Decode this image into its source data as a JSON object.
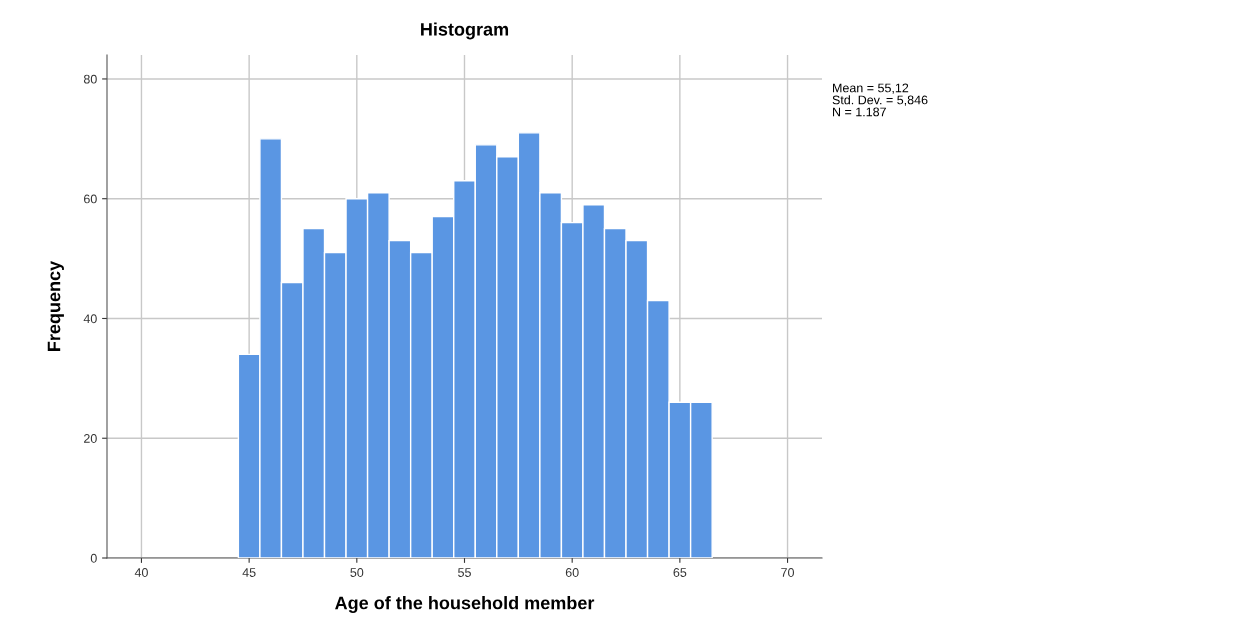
{
  "chart_data": {
    "type": "histogram",
    "title": "Histogram",
    "xlabel": "Age of the household member",
    "ylabel": "Frequency",
    "bins": [
      44.5,
      45.5,
      46.5,
      47.5,
      48.5,
      49.5,
      50.5,
      51.5,
      52.5,
      53.5,
      54.5,
      55.5,
      56.5,
      57.5,
      58.5,
      59.5,
      60.5,
      61.5,
      62.5,
      63.5,
      64.5,
      65.5,
      66.5
    ],
    "values": [
      34,
      70,
      46,
      55,
      51,
      60,
      61,
      53,
      51,
      57,
      63,
      69,
      67,
      71,
      61,
      56,
      59,
      55,
      53,
      43,
      26,
      26
    ],
    "color": "#5a96e3",
    "xlim": [
      38.4,
      71.6
    ],
    "xticks": [
      40,
      45,
      50,
      55,
      60,
      65,
      70
    ],
    "ylim": [
      0,
      84
    ],
    "yticks": [
      0,
      20,
      40,
      60,
      80
    ],
    "grid": true,
    "annotations": [
      "Mean = 55,12",
      "Std. Dev. = 5,846",
      "N = 1.187"
    ]
  }
}
